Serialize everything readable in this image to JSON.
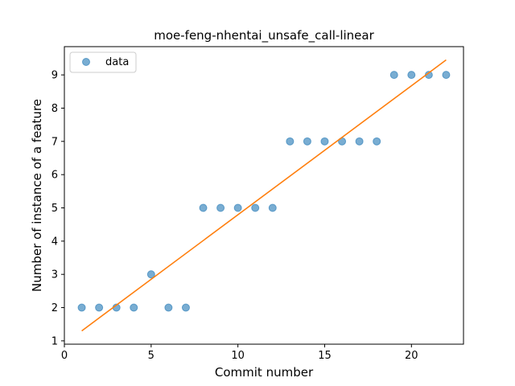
{
  "chart_data": {
    "type": "scatter",
    "title": "moe-feng-nhentai_unsafe_call-linear",
    "xlabel": "Commit number",
    "ylabel": "Number of instance of a feature",
    "xlim": [
      0,
      23
    ],
    "ylim": [
      0.9,
      9.85
    ],
    "xticks": [
      0,
      5,
      10,
      15,
      20
    ],
    "yticks": [
      1,
      2,
      3,
      4,
      5,
      6,
      7,
      8,
      9
    ],
    "legend": {
      "placement": "top-left",
      "entries": [
        "data"
      ]
    },
    "grid": false,
    "series": [
      {
        "name": "data",
        "kind": "scatter",
        "color": "#1f77b4",
        "x": [
          1,
          2,
          3,
          4,
          5,
          6,
          7,
          8,
          9,
          10,
          11,
          12,
          13,
          14,
          15,
          16,
          17,
          18,
          19,
          20,
          21,
          22
        ],
        "y": [
          2,
          2,
          2,
          2,
          3,
          2,
          2,
          5,
          5,
          5,
          5,
          5,
          7,
          7,
          7,
          7,
          7,
          7,
          9,
          9,
          9,
          9
        ]
      },
      {
        "kind": "line",
        "color": "#ff7f0e",
        "x": [
          1,
          22
        ],
        "y": [
          1.3,
          9.45
        ]
      }
    ]
  }
}
